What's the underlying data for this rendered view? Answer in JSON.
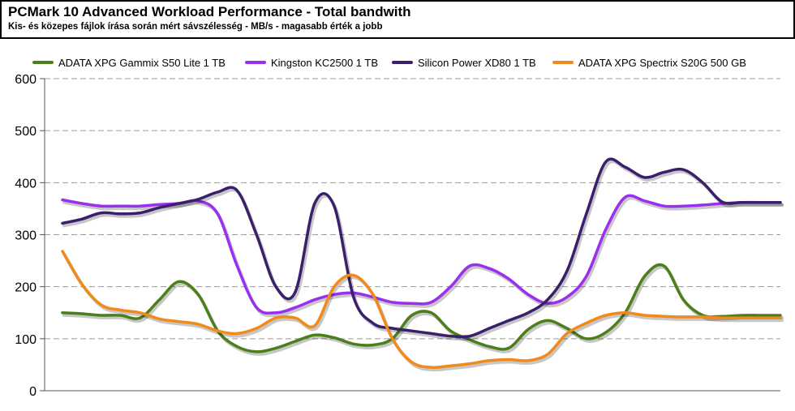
{
  "chart_data": {
    "type": "line",
    "title": "PCMark 10 Advanced Workload Performance - Total bandwith",
    "subtitle": "Kis- és közepes fájlok írása során mért sávszélesség - MB/s - magasabb érték a jobb",
    "xlabel": "",
    "ylabel": "",
    "ylim": [
      0,
      600
    ],
    "yticks": [
      0,
      100,
      200,
      300,
      400,
      500,
      600
    ],
    "grid": "horizontal dashed",
    "legend_position": "top",
    "x": [
      0,
      1,
      2,
      3,
      4,
      5,
      6,
      7,
      8,
      9,
      10,
      11,
      12,
      13,
      14,
      15,
      16,
      17,
      18,
      19,
      20,
      21,
      22,
      23,
      24,
      25,
      26,
      27,
      28,
      29,
      30,
      31,
      32,
      33,
      34,
      35,
      36,
      37
    ],
    "series": [
      {
        "name": "ADATA XPG Gammix S50 Lite 1 TB",
        "color": "#4a7f1a",
        "values": [
          150,
          148,
          145,
          145,
          140,
          175,
          210,
          185,
          115,
          85,
          75,
          82,
          95,
          107,
          102,
          90,
          88,
          100,
          145,
          150,
          115,
          98,
          85,
          82,
          118,
          135,
          120,
          100,
          112,
          150,
          220,
          240,
          175,
          145,
          143,
          145,
          145,
          145
        ]
      },
      {
        "name": "Kingston KC2500 1 TB",
        "color": "#9a2ff0",
        "values": [
          367,
          360,
          355,
          355,
          355,
          358,
          360,
          365,
          340,
          240,
          160,
          150,
          160,
          175,
          185,
          188,
          180,
          170,
          168,
          170,
          200,
          240,
          235,
          215,
          185,
          168,
          180,
          220,
          310,
          372,
          365,
          355,
          355,
          357,
          360,
          362,
          362,
          362
        ]
      },
      {
        "name": "Silicon Power XD80 1 TB",
        "color": "#3a1f6a",
        "values": [
          322,
          330,
          342,
          340,
          342,
          352,
          360,
          368,
          382,
          385,
          300,
          200,
          190,
          360,
          355,
          180,
          130,
          120,
          115,
          110,
          105,
          105,
          120,
          135,
          150,
          175,
          230,
          340,
          440,
          430,
          410,
          420,
          425,
          400,
          363,
          362,
          362,
          362
        ]
      },
      {
        "name": "ADATA XPG Spectrix S20G 500 GB",
        "color": "#f28a1b",
        "values": [
          268,
          205,
          165,
          155,
          150,
          138,
          133,
          128,
          115,
          110,
          120,
          140,
          140,
          125,
          200,
          222,
          185,
          100,
          55,
          45,
          48,
          52,
          58,
          60,
          58,
          70,
          110,
          130,
          145,
          150,
          145,
          143,
          142,
          142,
          140,
          140,
          140,
          140
        ]
      }
    ]
  }
}
